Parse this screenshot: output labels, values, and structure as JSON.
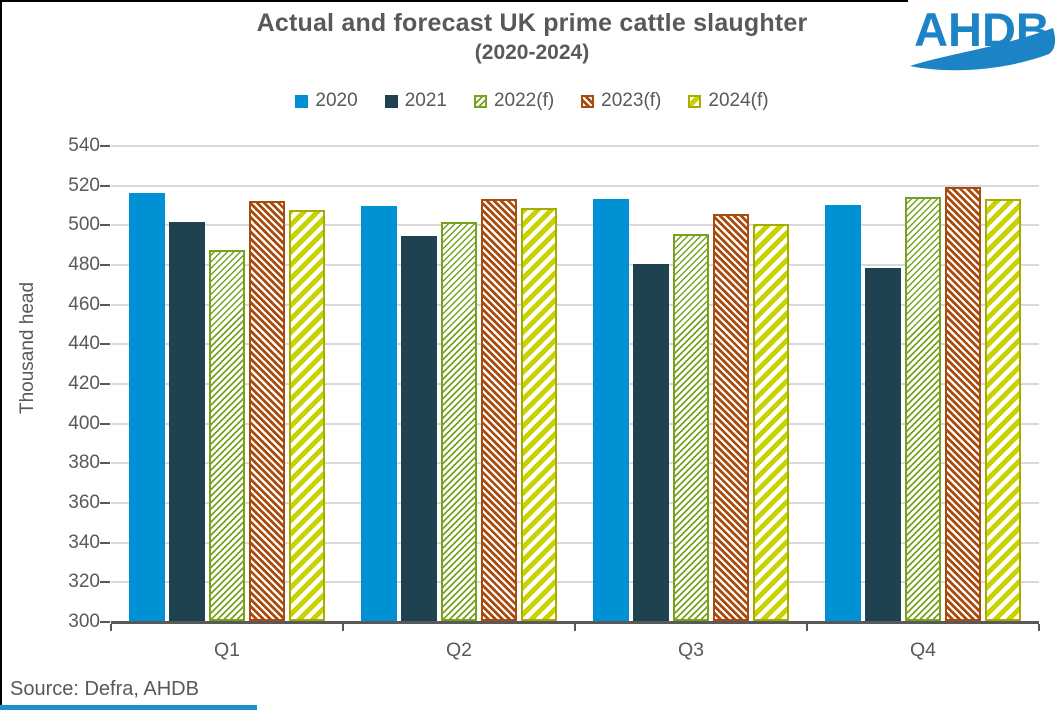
{
  "page": {
    "title": "Actual and forecast UK prime cattle slaughter",
    "subtitle": "(2020-2024)",
    "source": "Source: Defra, AHDB",
    "logo_text": "AHDB"
  },
  "colors": {
    "series_2020_blue": "#0090D4",
    "series_2021_navy": "#1F4251",
    "series_2022_green": "#76A21E",
    "series_2023_red": "#A94B0D",
    "series_2024_yellow": "#C9D100",
    "axis": "#595959",
    "gridline": "#D9D9D9",
    "text": "#595959",
    "logo_blue": "#1C83C6",
    "bottom_strip_blue": "#1E8FCD"
  },
  "chart_data": {
    "type": "bar",
    "title": "Actual and forecast UK prime cattle slaughter",
    "subtitle": "(2020-2024)",
    "categories": [
      "Q1",
      "Q2",
      "Q3",
      "Q4"
    ],
    "series": [
      {
        "name": "2020",
        "style": "solid-blue",
        "values": [
          516,
          509,
          513,
          510
        ]
      },
      {
        "name": "2021",
        "style": "solid-navy",
        "values": [
          501,
          494,
          480,
          478
        ]
      },
      {
        "name": "2022(f)",
        "style": "hatch-green",
        "values": [
          487,
          501,
          495,
          514
        ]
      },
      {
        "name": "2023(f)",
        "style": "hatch-red",
        "values": [
          512,
          513,
          505,
          519
        ]
      },
      {
        "name": "2024(f)",
        "style": "hatch-yellow",
        "values": [
          507,
          508,
          500,
          513
        ]
      }
    ],
    "xlabel": "",
    "ylabel": "Thousand head",
    "ylim": [
      300,
      540
    ],
    "ytick_step": 20,
    "grid": true,
    "legend_position": "top"
  }
}
